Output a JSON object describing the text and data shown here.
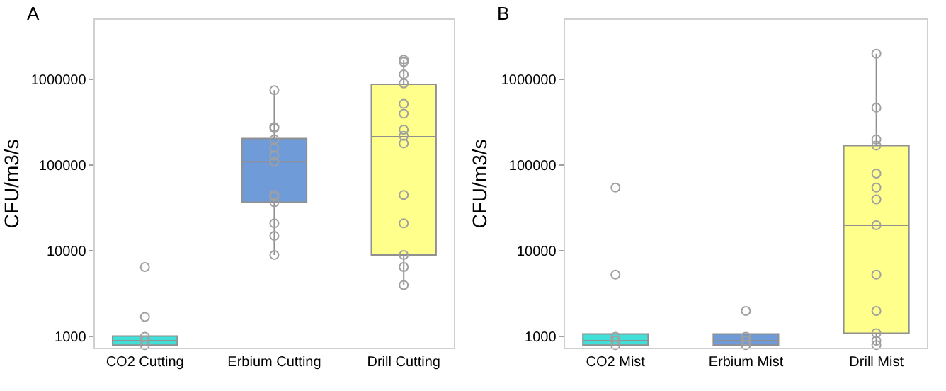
{
  "chart_data": [
    {
      "type": "box",
      "title": "A",
      "ylabel": "CFU/m3/s",
      "categories": [
        "CO2 Cutting",
        "Erbium Cutting",
        "Drill Cutting"
      ],
      "colors": [
        "#40e0d8",
        "#6f9bd8",
        "#ffff8c"
      ],
      "boxes": [
        {
          "low": 800,
          "q1": 800,
          "median": 900,
          "q3": 1020,
          "high": 1020
        },
        {
          "low": 9000,
          "q1": 37000,
          "median": 110000,
          "q3": 205000,
          "high": 750000
        },
        {
          "low": 4000,
          "q1": 9000,
          "median": 215000,
          "q3": 880000,
          "high": 1700000
        }
      ],
      "series": [
        {
          "type": "scatter",
          "marker": "circle",
          "color": "#a0a0a0",
          "x": [
            "CO2 Cutting",
            "CO2 Cutting",
            "CO2 Cutting",
            "CO2 Cutting",
            "CO2 Cutting",
            "Erbium Cutting",
            "Erbium Cutting",
            "Erbium Cutting",
            "Erbium Cutting",
            "Erbium Cutting",
            "Erbium Cutting",
            "Erbium Cutting",
            "Erbium Cutting",
            "Erbium Cutting",
            "Erbium Cutting",
            "Erbium Cutting",
            "Erbium Cutting",
            "Erbium Cutting",
            "Drill Cutting",
            "Drill Cutting",
            "Drill Cutting",
            "Drill Cutting",
            "Drill Cutting",
            "Drill Cutting",
            "Drill Cutting",
            "Drill Cutting",
            "Drill Cutting",
            "Drill Cutting",
            "Drill Cutting",
            "Drill Cutting",
            "Drill Cutting",
            "Drill Cutting"
          ],
          "values": [
            800,
            900,
            1000,
            1700,
            6500,
            750000,
            280000,
            270000,
            200000,
            160000,
            130000,
            110000,
            45000,
            43000,
            37000,
            21000,
            15000,
            9000,
            1700000,
            1600000,
            1150000,
            900000,
            520000,
            400000,
            260000,
            220000,
            180000,
            45000,
            21000,
            9000,
            6500,
            4000
          ]
        }
      ],
      "log": true,
      "ylim": [
        740,
        5000000
      ],
      "yticks": [
        1000,
        10000,
        100000,
        1000000
      ]
    },
    {
      "type": "box",
      "title": "B",
      "ylabel": "CFU/m3/s",
      "categories": [
        "CO2 Mist",
        "Erbium Mist",
        "Drill Mist"
      ],
      "colors": [
        "#40e0d8",
        "#6f9bd8",
        "#ffff8c"
      ],
      "boxes": [
        {
          "low": 800,
          "q1": 800,
          "median": 900,
          "q3": 1080,
          "high": 1080
        },
        {
          "low": 800,
          "q1": 800,
          "median": 900,
          "q3": 1080,
          "high": 1080
        },
        {
          "low": 800,
          "q1": 1100,
          "median": 20000,
          "q3": 170000,
          "high": 2000000
        }
      ],
      "series": [
        {
          "type": "scatter",
          "marker": "circle",
          "color": "#a0a0a0",
          "x": [
            "CO2 Mist",
            "CO2 Mist",
            "CO2 Mist",
            "CO2 Mist",
            "CO2 Mist",
            "Erbium Mist",
            "Erbium Mist",
            "Erbium Mist",
            "Erbium Mist",
            "Drill Mist",
            "Drill Mist",
            "Drill Mist",
            "Drill Mist",
            "Drill Mist",
            "Drill Mist",
            "Drill Mist",
            "Drill Mist",
            "Drill Mist",
            "Drill Mist",
            "Drill Mist",
            "Drill Mist",
            "Drill Mist"
          ],
          "values": [
            55000,
            5300,
            1000,
            900,
            800,
            2000,
            1000,
            900,
            800,
            2000000,
            470000,
            200000,
            170000,
            80000,
            55000,
            40000,
            20000,
            5300,
            2000,
            1100,
            900,
            800
          ]
        }
      ],
      "log": true,
      "ylim": [
        740,
        5000000
      ],
      "yticks": [
        1000,
        10000,
        100000,
        1000000
      ]
    }
  ]
}
